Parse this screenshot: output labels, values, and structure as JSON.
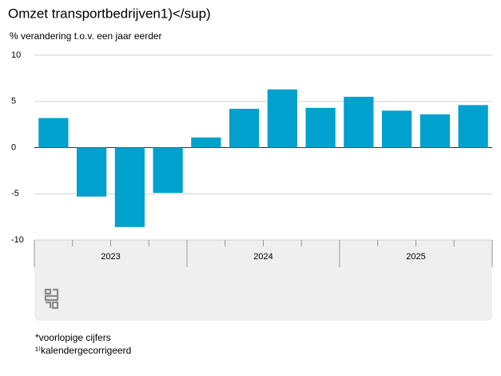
{
  "chart_data": {
    "type": "bar",
    "title": "Omzet transportbedrijven1)</sup)",
    "subtitle": "% verandering t.o.v. een jaar eerder",
    "categories": [
      null,
      null,
      null,
      null,
      null,
      null,
      null,
      null,
      null,
      null,
      null,
      null
    ],
    "x_groups": [
      "2023",
      "2024",
      "2025"
    ],
    "values": [
      3.2,
      -5.3,
      -8.6,
      -4.9,
      1.1,
      4.2,
      6.3,
      4.3,
      5.5,
      4.0,
      3.6,
      4.6
    ],
    "color": "#00a1cd",
    "ylim": [
      -10,
      10
    ],
    "yticks": [
      -10,
      -5,
      0,
      5,
      10
    ],
    "grid": true,
    "footnotes": [
      "*voorlopige cijfers",
      "¹⁾kalendergecorrigeerd"
    ]
  }
}
